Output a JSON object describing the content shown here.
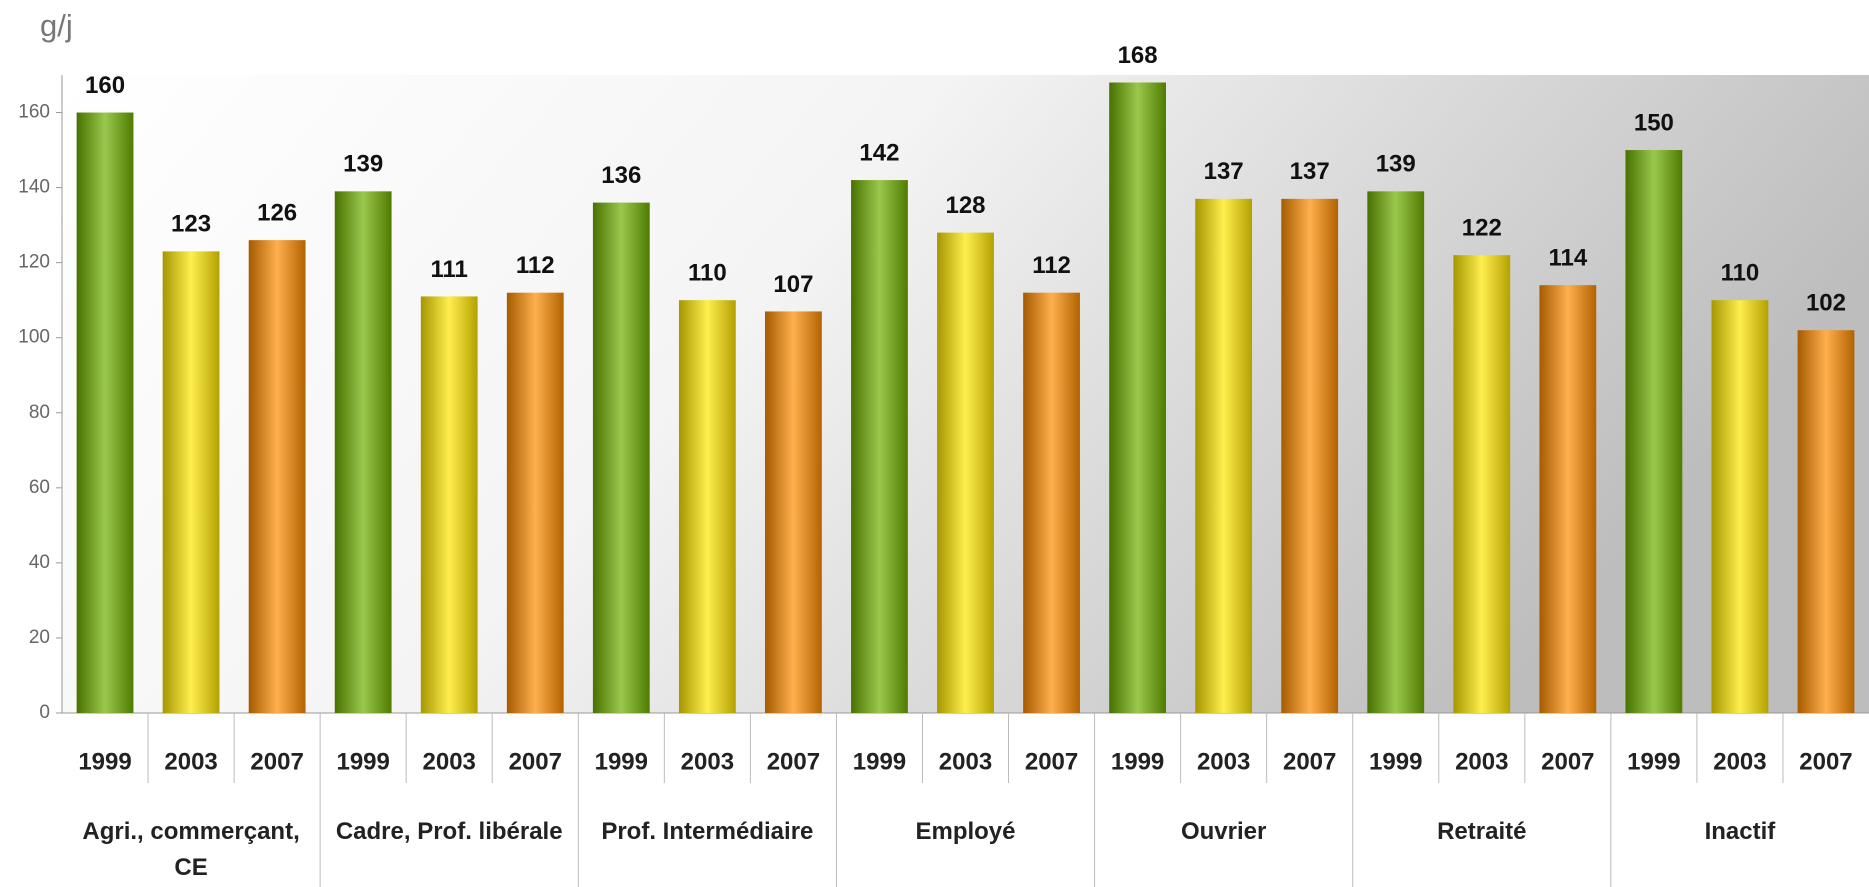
{
  "chart_data": {
    "type": "bar",
    "y_label": "g/j",
    "categories": [
      "Agri., commerçant, CE",
      "Cadre, Prof. libérale",
      "Prof. Intermédiaire",
      "Employé",
      "Ouvrier",
      "Retraité",
      "Inactif"
    ],
    "series": [
      {
        "name": "1999",
        "color": "#6fb000",
        "values": [
          160,
          139,
          136,
          142,
          168,
          139,
          150
        ]
      },
      {
        "name": "2003",
        "color": "#ffe600",
        "values": [
          123,
          111,
          110,
          128,
          137,
          122,
          110
        ]
      },
      {
        "name": "2007",
        "color": "#ff8c00",
        "values": [
          126,
          112,
          107,
          112,
          137,
          114,
          102
        ]
      }
    ],
    "ylim": [
      0,
      170
    ],
    "yticks": [
      0,
      20,
      40,
      60,
      80,
      100,
      120,
      140,
      160
    ]
  }
}
